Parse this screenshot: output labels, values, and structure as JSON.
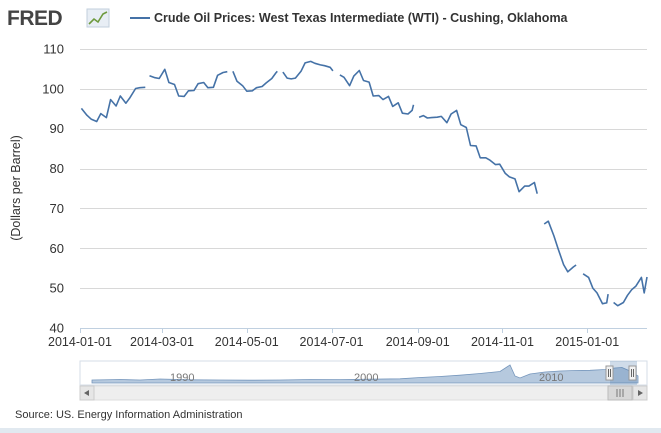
{
  "header": {
    "logo_text": "FRED",
    "legend_label": "Crude Oil Prices: West Texas Intermediate (WTI) - Cushing, Oklahoma",
    "line_color": "#4572a7"
  },
  "source_note": "Source: US. Energy Information Administration",
  "navigator": {
    "years": [
      "1990",
      "2000",
      "2010"
    ]
  },
  "chart_data": {
    "type": "line",
    "ylabel": "(Dollars per Barrel)",
    "ylim": [
      40,
      110
    ],
    "yticks": [
      40,
      50,
      60,
      70,
      80,
      90,
      100,
      110
    ],
    "xlim": [
      "2014-01-01",
      "2015-02-13"
    ],
    "xticks": [
      "2014-01-01",
      "2014-03-01",
      "2014-05-01",
      "2014-07-01",
      "2014-09-01",
      "2014-11-01",
      "2015-01-01"
    ],
    "grid": "horizontal",
    "series": [
      {
        "name": "Crude Oil Prices: West Texas Intermediate (WTI) - Cushing, Oklahoma",
        "segments": [
          [
            [
              "2014-01-02",
              95.1
            ],
            [
              "2014-01-06",
              93.4
            ],
            [
              "2014-01-09",
              92.4
            ],
            [
              "2014-01-13",
              91.8
            ],
            [
              "2014-01-16",
              93.8
            ],
            [
              "2014-01-20",
              92.8
            ],
            [
              "2014-01-23",
              97.3
            ],
            [
              "2014-01-27",
              95.7
            ],
            [
              "2014-01-30",
              98.2
            ],
            [
              "2014-02-03",
              96.4
            ],
            [
              "2014-02-06",
              97.8
            ],
            [
              "2014-02-10",
              100.1
            ],
            [
              "2014-02-13",
              100.3
            ],
            [
              "2014-02-17",
              100.4
            ]
          ],
          [
            [
              "2014-02-20",
              103.3
            ],
            [
              "2014-02-24",
              102.8
            ],
            [
              "2014-02-27",
              102.6
            ],
            [
              "2014-03-03",
              104.9
            ],
            [
              "2014-03-06",
              101.6
            ],
            [
              "2014-03-10",
              101.1
            ],
            [
              "2014-03-13",
              98.2
            ],
            [
              "2014-03-17",
              98.1
            ],
            [
              "2014-03-20",
              99.5
            ],
            [
              "2014-03-24",
              99.6
            ],
            [
              "2014-03-27",
              101.3
            ],
            [
              "2014-03-31",
              101.6
            ],
            [
              "2014-04-03",
              100.3
            ],
            [
              "2014-04-07",
              100.4
            ],
            [
              "2014-04-10",
              103.4
            ],
            [
              "2014-04-14",
              104.1
            ],
            [
              "2014-04-17",
              104.3
            ]
          ],
          [
            [
              "2014-04-21",
              104.4
            ],
            [
              "2014-04-24",
              101.9
            ],
            [
              "2014-04-28",
              100.8
            ],
            [
              "2014-05-01",
              99.4
            ],
            [
              "2014-05-05",
              99.5
            ],
            [
              "2014-05-08",
              100.3
            ],
            [
              "2014-05-12",
              100.6
            ],
            [
              "2014-05-15",
              101.5
            ],
            [
              "2014-05-19",
              102.6
            ],
            [
              "2014-05-22",
              104.0
            ],
            [
              "2014-05-23",
              104.4
            ]
          ],
          [
            [
              "2014-05-27",
              104.2
            ],
            [
              "2014-05-30",
              102.7
            ],
            [
              "2014-06-02",
              102.5
            ],
            [
              "2014-06-05",
              102.7
            ],
            [
              "2014-06-09",
              104.4
            ],
            [
              "2014-06-12",
              106.5
            ],
            [
              "2014-06-16",
              106.9
            ],
            [
              "2014-06-19",
              106.4
            ],
            [
              "2014-06-23",
              106.0
            ],
            [
              "2014-06-26",
              105.8
            ],
            [
              "2014-06-30",
              105.4
            ],
            [
              "2014-07-02",
              104.5
            ]
          ],
          [
            [
              "2014-07-07",
              103.5
            ],
            [
              "2014-07-10",
              102.9
            ],
            [
              "2014-07-14",
              100.8
            ],
            [
              "2014-07-17",
              103.2
            ],
            [
              "2014-07-21",
              104.6
            ],
            [
              "2014-07-24",
              102.1
            ],
            [
              "2014-07-28",
              101.7
            ],
            [
              "2014-07-31",
              98.2
            ],
            [
              "2014-08-04",
              98.3
            ],
            [
              "2014-08-07",
              97.3
            ],
            [
              "2014-08-11",
              98.1
            ],
            [
              "2014-08-14",
              95.6
            ],
            [
              "2014-08-18",
              96.5
            ],
            [
              "2014-08-21",
              93.9
            ],
            [
              "2014-08-25",
              93.7
            ],
            [
              "2014-08-28",
              94.6
            ],
            [
              "2014-08-29",
              96.0
            ]
          ],
          [
            [
              "2014-09-02",
              92.9
            ],
            [
              "2014-09-05",
              93.3
            ],
            [
              "2014-09-08",
              92.7
            ],
            [
              "2014-09-11",
              92.8
            ],
            [
              "2014-09-15",
              92.9
            ],
            [
              "2014-09-18",
              93.1
            ],
            [
              "2014-09-22",
              91.5
            ],
            [
              "2014-09-25",
              93.7
            ],
            [
              "2014-09-29",
              94.6
            ],
            [
              "2014-10-02",
              91.0
            ],
            [
              "2014-10-06",
              90.3
            ],
            [
              "2014-10-09",
              85.8
            ],
            [
              "2014-10-13",
              85.7
            ],
            [
              "2014-10-16",
              82.7
            ],
            [
              "2014-10-20",
              82.7
            ],
            [
              "2014-10-23",
              82.1
            ],
            [
              "2014-10-27",
              81.0
            ],
            [
              "2014-10-30",
              81.1
            ],
            [
              "2014-11-03",
              78.8
            ],
            [
              "2014-11-06",
              77.9
            ],
            [
              "2014-11-10",
              77.4
            ],
            [
              "2014-11-13",
              74.2
            ],
            [
              "2014-11-17",
              75.6
            ],
            [
              "2014-11-20",
              75.6
            ],
            [
              "2014-11-24",
              76.5
            ],
            [
              "2014-11-26",
              73.7
            ]
          ],
          [
            [
              "2014-12-01",
              66.1
            ],
            [
              "2014-12-04",
              66.8
            ],
            [
              "2014-12-08",
              63.1
            ],
            [
              "2014-12-11",
              59.9
            ],
            [
              "2014-12-15",
              55.9
            ],
            [
              "2014-12-18",
              54.1
            ],
            [
              "2014-12-22",
              55.3
            ],
            [
              "2014-12-24",
              55.8
            ]
          ],
          [
            [
              "2014-12-29",
              53.6
            ],
            [
              "2015-01-02",
              52.7
            ],
            [
              "2015-01-05",
              50.0
            ],
            [
              "2015-01-08",
              48.8
            ],
            [
              "2015-01-12",
              46.1
            ],
            [
              "2015-01-15",
              46.3
            ],
            [
              "2015-01-16",
              48.5
            ]
          ],
          [
            [
              "2015-01-20",
              46.4
            ],
            [
              "2015-01-23",
              45.6
            ],
            [
              "2015-01-27",
              46.4
            ],
            [
              "2015-01-30",
              48.2
            ],
            [
              "2015-02-02",
              49.6
            ],
            [
              "2015-02-05",
              50.5
            ],
            [
              "2015-02-09",
              52.7
            ],
            [
              "2015-02-11",
              48.8
            ],
            [
              "2015-02-13",
              52.8
            ]
          ]
        ]
      }
    ]
  }
}
